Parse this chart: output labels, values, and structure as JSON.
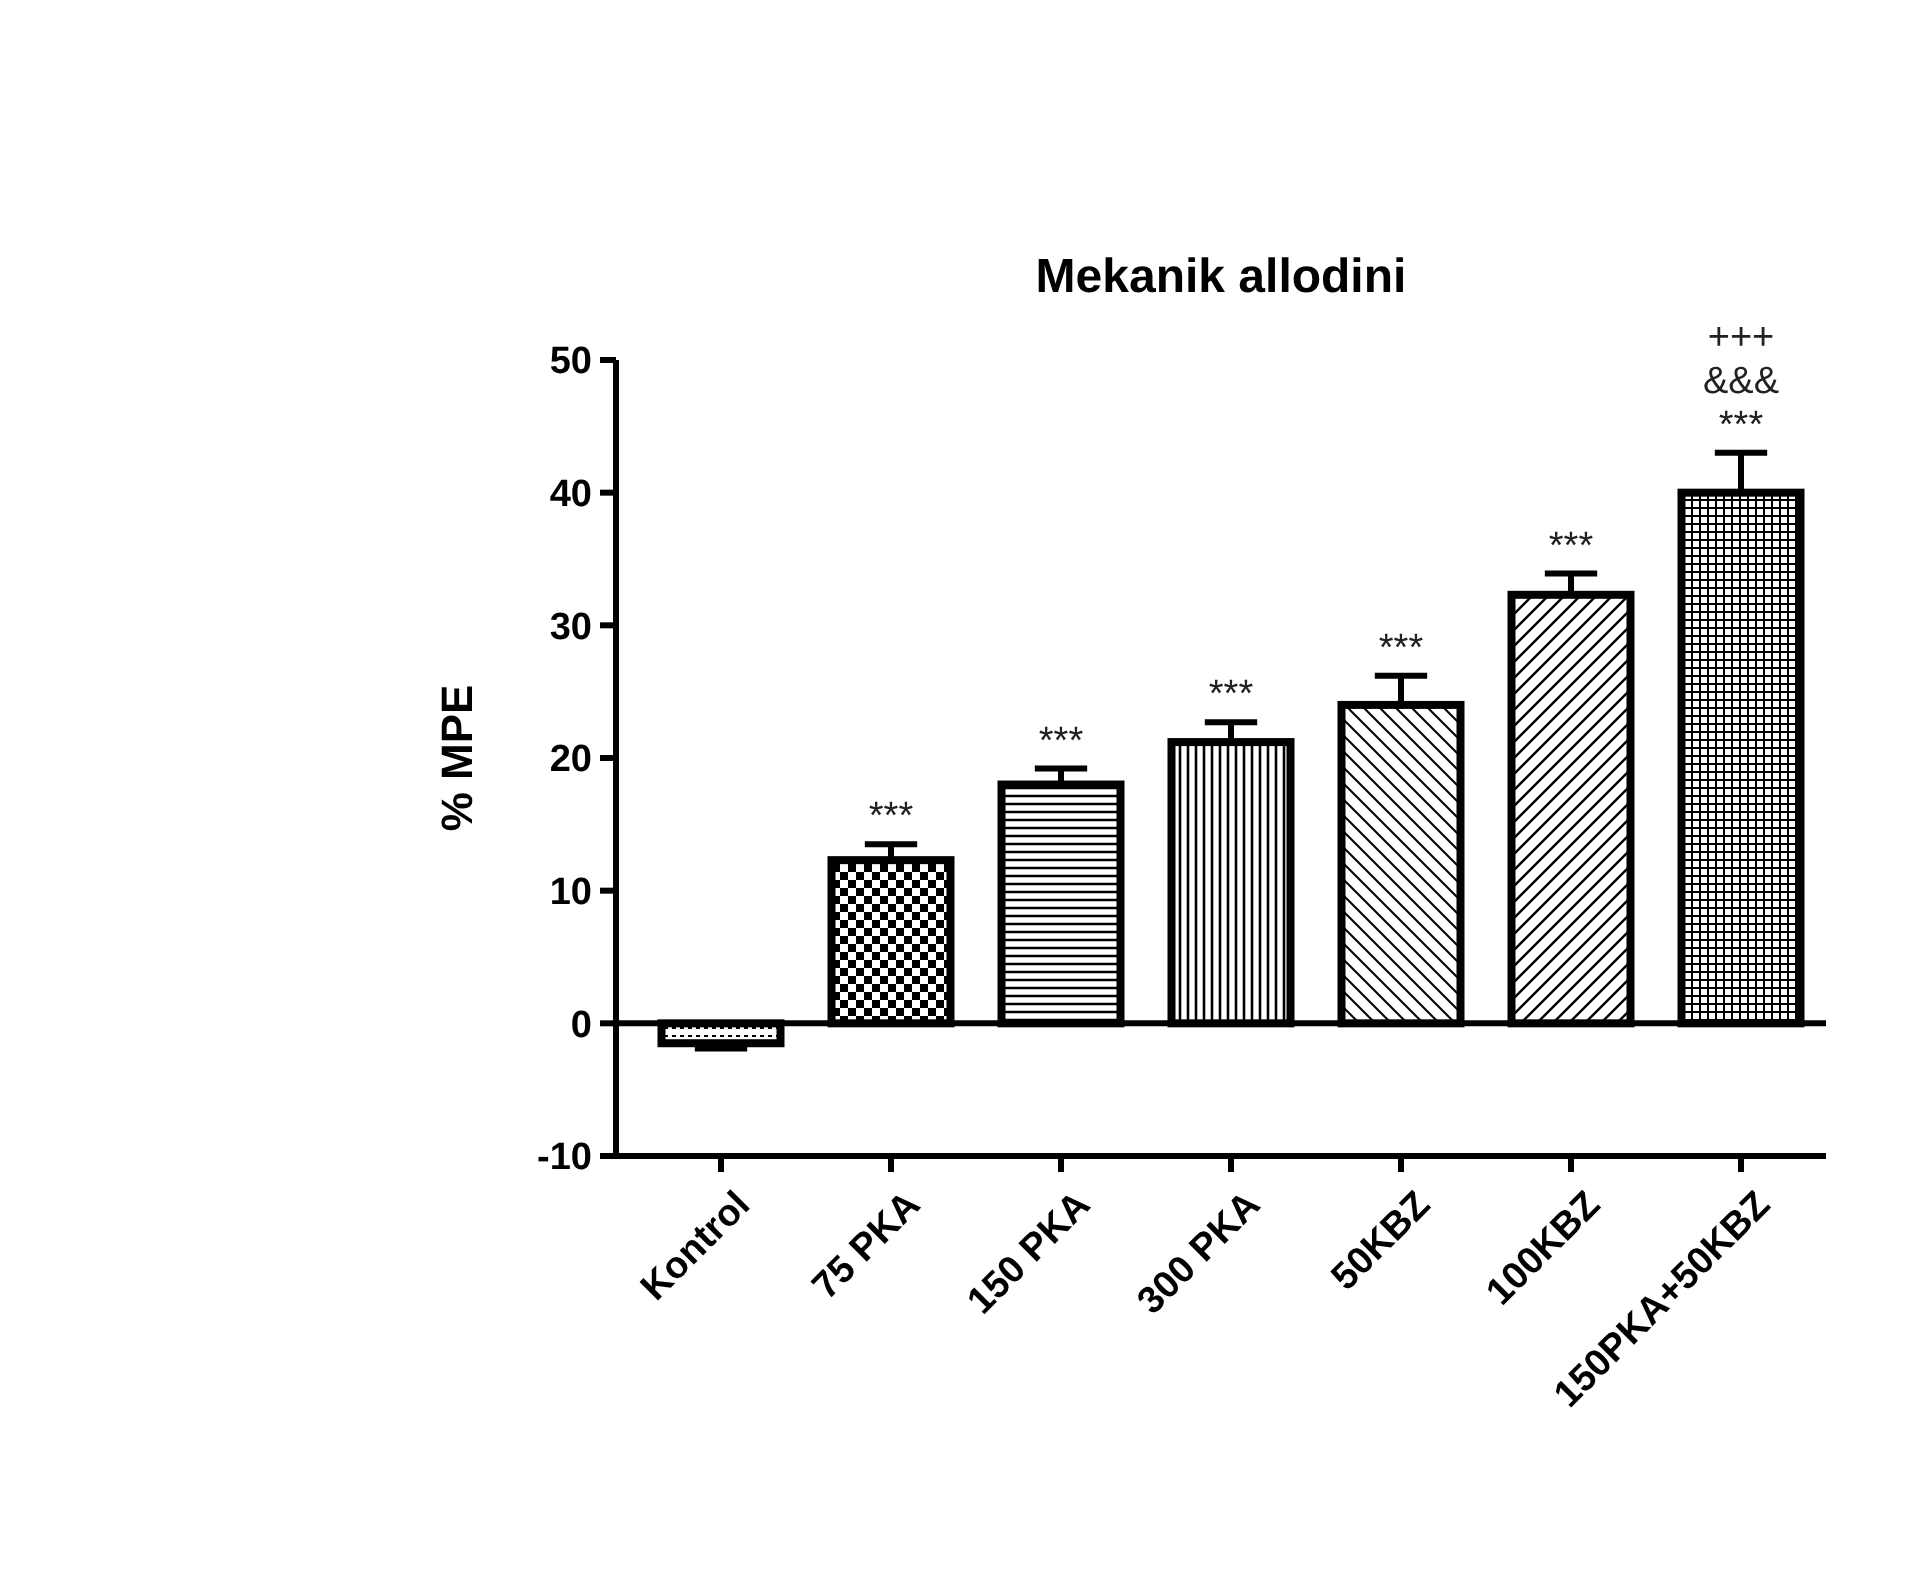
{
  "chart_data": {
    "type": "bar",
    "title": "Mekanik allodini",
    "ylabel": "% MPE",
    "categories": [
      "Kontrol",
      "75 PKA",
      "150 PKA",
      "300 PKA",
      "50KBZ",
      "100KBZ",
      "150PKA+50KBZ"
    ],
    "values": [
      -1.5,
      12.3,
      18,
      21.2,
      24,
      32.3,
      40
    ],
    "errors": [
      0.4,
      1.2,
      1.2,
      1.5,
      2.2,
      1.6,
      3
    ],
    "color": "#000000",
    "ylim": [
      -10,
      50
    ],
    "yticks": [
      -10,
      0,
      10,
      20,
      30,
      40,
      50
    ],
    "annotations": [
      {
        "text": "***",
        "x": "75 PKA",
        "y": 13.5
      },
      {
        "text": "***",
        "x": "150 PKA",
        "y": 19.2
      },
      {
        "text": "***",
        "x": "300 PKA",
        "y": 22.7
      },
      {
        "text": "***",
        "x": "50KBZ",
        "y": 26.2
      },
      {
        "text": "***",
        "x": "100KBZ",
        "y": 33.9
      },
      {
        "text": "***",
        "x": "150PKA+50KBZ",
        "y": 43
      },
      {
        "text": "&&&",
        "x": "150PKA+50KBZ",
        "y": 43
      },
      {
        "text": "+++",
        "x": "150PKA+50KBZ",
        "y": 43
      }
    ]
  }
}
